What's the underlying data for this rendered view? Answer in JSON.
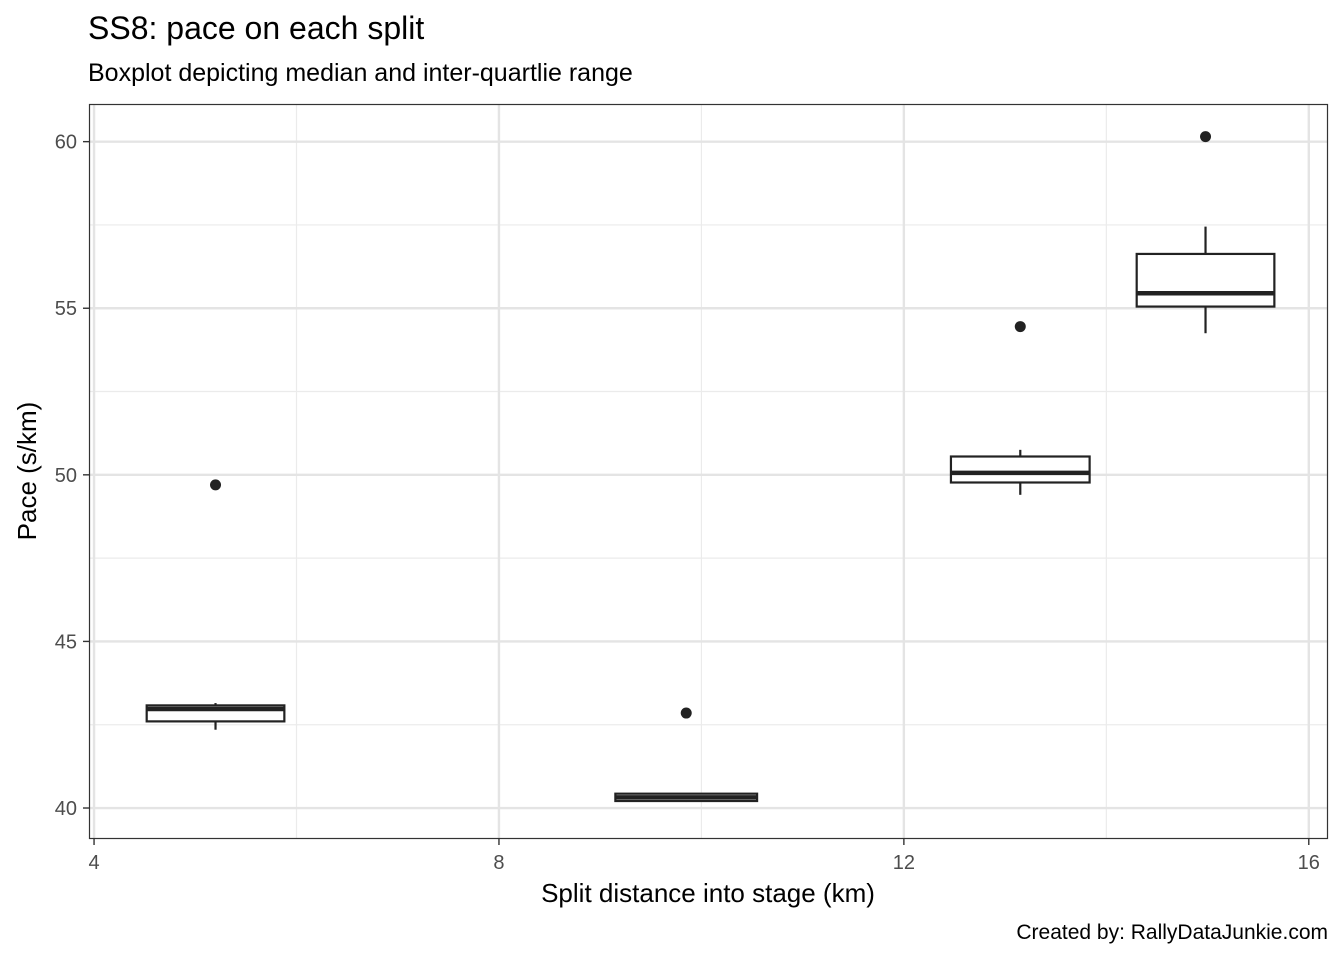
{
  "chart_data": {
    "type": "boxplot",
    "title": "SS8: pace on each split",
    "subtitle": "Boxplot depicting median and inter-quartlie range",
    "caption": "Created by: RallyDataJunkie.com",
    "xlabel": "Split distance into stage (km)",
    "ylabel": "Pace (s/km)",
    "xlim": [
      3.96,
      16.18
    ],
    "ylim": [
      39.1,
      61.1
    ],
    "xticks": [
      4,
      8,
      12,
      16
    ],
    "yticks": [
      40,
      45,
      50,
      55,
      60
    ],
    "grid": true,
    "box_color": "#222222",
    "boxes": [
      {
        "x": 5.2,
        "width": 1.36,
        "whisker_low": 42.35,
        "q1": 42.6,
        "median": 42.97,
        "q3": 43.08,
        "whisker_high": 43.15,
        "outliers": [
          49.7
        ]
      },
      {
        "x": 9.85,
        "width": 1.4,
        "whisker_low": 40.18,
        "q1": 40.21,
        "median": 40.32,
        "q3": 40.43,
        "whisker_high": 40.45,
        "outliers": [
          42.85
        ]
      },
      {
        "x": 13.15,
        "width": 1.37,
        "whisker_low": 49.4,
        "q1": 49.77,
        "median": 50.06,
        "q3": 50.55,
        "whisker_high": 50.75,
        "outliers": [
          54.45
        ]
      },
      {
        "x": 14.98,
        "width": 1.36,
        "whisker_low": 54.25,
        "q1": 55.05,
        "median": 55.45,
        "q3": 56.63,
        "whisker_high": 57.45,
        "outliers": [
          60.15
        ]
      }
    ]
  }
}
